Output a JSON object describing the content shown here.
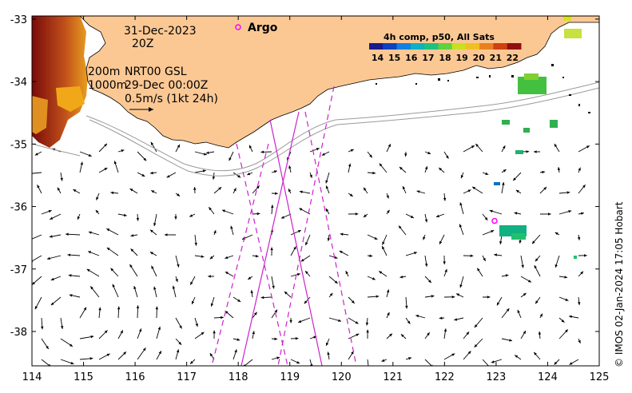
{
  "map": {
    "date": "31-Dec-2023",
    "time": "20Z",
    "isobath_shallow": "200m",
    "isobath_deep": "1000m",
    "product": "NRT00 GSL",
    "product_time": "29-Dec 00:00Z",
    "vector_scale": "0.5m/s (1kt 24h)",
    "argo_label": "Argo",
    "credit": "© IMOS 02-Jan-2024 17:05 Hobart",
    "lon_ticks": [
      "114",
      "115",
      "116",
      "117",
      "118",
      "119",
      "120",
      "121",
      "122",
      "123",
      "124",
      "125"
    ],
    "lat_ticks": [
      "-33",
      "-34",
      "-35",
      "-36",
      "-37",
      "-38"
    ],
    "lon_range": [
      114,
      125
    ],
    "lat_range": [
      -38.55,
      -32.95
    ],
    "argo_float": {
      "lon": 122.97,
      "lat": -36.23
    },
    "colorbar": {
      "title": "4h comp, p50, All Sats",
      "ticks": [
        "14",
        "15",
        "16",
        "17",
        "18",
        "19",
        "20",
        "21",
        "22"
      ],
      "range": [
        13.5,
        22.5
      ]
    },
    "colors": {
      "land": "#fbc894",
      "tracks": "#cc22cc",
      "isobath": "#9a9a9a",
      "argo": "#ff00ff"
    }
  }
}
